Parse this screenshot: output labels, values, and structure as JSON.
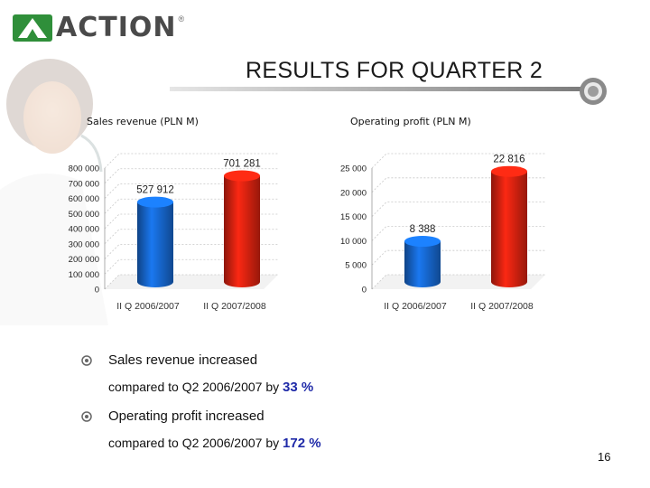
{
  "logo": {
    "text": "ACTION",
    "reg": "®"
  },
  "title": "RESULTS FOR QUARTER 2",
  "chart_data": [
    {
      "type": "bar",
      "title": "Sales revenue (PLN M)",
      "categories": [
        "II Q 2006/2007",
        "II Q 2007/2008"
      ],
      "values": [
        527912,
        701281
      ],
      "value_labels": [
        "527 912",
        "701 281"
      ],
      "bar_colors": [
        "#1560c0",
        "#c9200f"
      ],
      "ylim": [
        0,
        800000
      ],
      "yticks": [
        0,
        100000,
        200000,
        300000,
        400000,
        500000,
        600000,
        700000,
        800000
      ],
      "ytick_labels": [
        "0",
        "100 000",
        "200 000",
        "300 000",
        "400 000",
        "500 000",
        "600 000",
        "700 000",
        "800 000"
      ],
      "grid": true
    },
    {
      "type": "bar",
      "title": "Operating profit (PLN M)",
      "categories": [
        "II Q 2006/2007",
        "II Q 2007/2008"
      ],
      "values": [
        8388,
        22816
      ],
      "value_labels": [
        "8 388",
        "22 816"
      ],
      "bar_colors": [
        "#1560c0",
        "#c9200f"
      ],
      "ylim": [
        0,
        25000
      ],
      "yticks": [
        0,
        5000,
        10000,
        15000,
        20000,
        25000
      ],
      "ytick_labels": [
        "0",
        "5 000",
        "10 000",
        "15 000",
        "20 000",
        "25 000"
      ],
      "grid": true
    }
  ],
  "bullets": [
    {
      "line1": "Sales revenue increased",
      "line2": "compared to Q2 2006/2007 by ",
      "pct": "33 %"
    },
    {
      "line1": "Operating profit increased",
      "line2": "compared to Q2 2006/2007 by ",
      "pct": "172 %"
    }
  ],
  "page_number": "16",
  "colors": {
    "bar_blue": "#1560c0",
    "bar_red": "#c9200f",
    "accent_pct": "#1f2aa8"
  },
  "icons": [
    "action-logo-mark",
    "bullet-circle-icon",
    "title-knob-icon"
  ]
}
